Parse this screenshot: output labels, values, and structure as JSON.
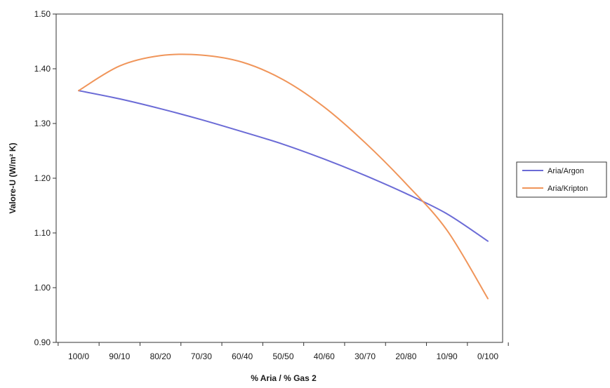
{
  "chart_data": {
    "type": "line",
    "title": "",
    "xlabel": "% Aria / % Gas 2",
    "ylabel": "Valore-U (W/m² K)",
    "categories": [
      "100/0",
      "90/10",
      "80/20",
      "70/30",
      "60/40",
      "50/50",
      "40/60",
      "30/70",
      "20/80",
      "10/90",
      "0/100"
    ],
    "ylim": [
      0.9,
      1.5
    ],
    "y_ticks": [
      "0.90",
      "1.00",
      "1.10",
      "1.20",
      "1.30",
      "1.40",
      "1.50"
    ],
    "grid": false,
    "legend_position": "right",
    "series": [
      {
        "name": "Aria/Argon",
        "color": "#6b6bd6",
        "values": [
          1.36,
          1.345,
          1.327,
          1.307,
          1.285,
          1.262,
          1.235,
          1.205,
          1.172,
          1.135,
          1.085
        ]
      },
      {
        "name": "Aria/Kripton",
        "color": "#f0955a",
        "values": [
          1.36,
          1.405,
          1.424,
          1.425,
          1.412,
          1.38,
          1.33,
          1.265,
          1.19,
          1.105,
          0.98
        ]
      }
    ]
  }
}
